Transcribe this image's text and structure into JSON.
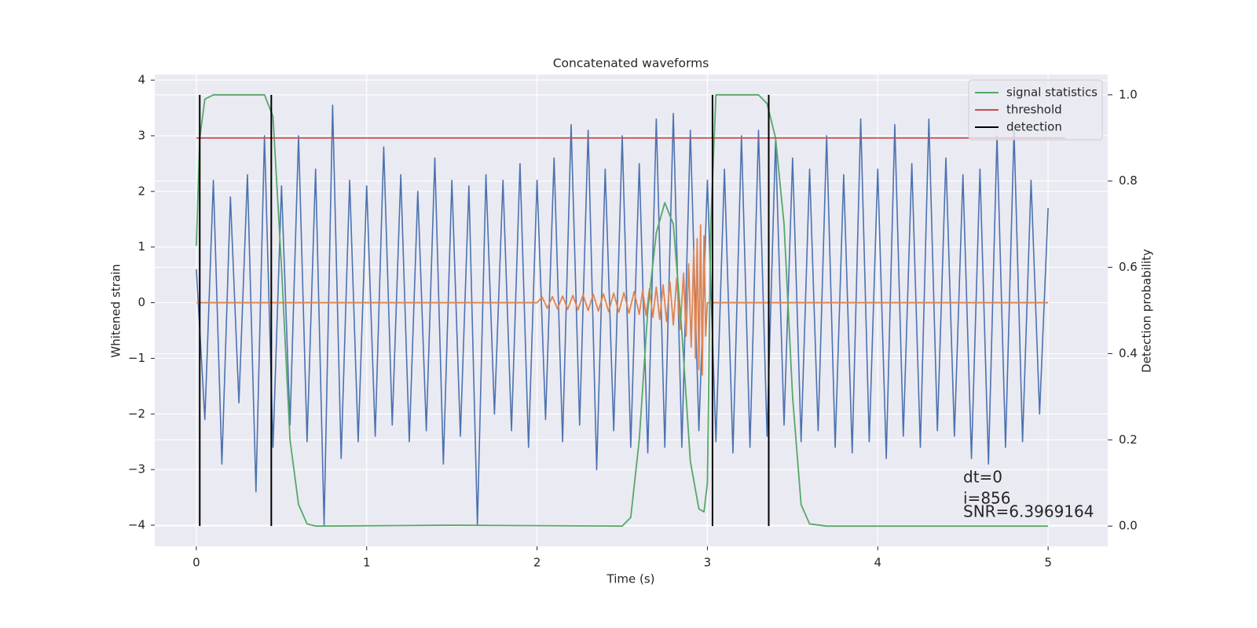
{
  "chart_data": {
    "type": "line",
    "title": "Concatenated waveforms",
    "x_label": "Time (s)",
    "y_label": "Whitened strain",
    "y2_label": "Detection probability",
    "xlim": [
      -0.244,
      5.35
    ],
    "ylim": [
      -4.38,
      4.1
    ],
    "y2lim": [
      -0.047,
      1.047
    ],
    "xticks": [
      0,
      1,
      2,
      3,
      4,
      5
    ],
    "yticks": [
      {
        "value": -4,
        "label": "−4"
      },
      {
        "value": -3,
        "label": "−3"
      },
      {
        "value": -2,
        "label": "−2"
      },
      {
        "value": -1,
        "label": "−1"
      },
      0,
      1,
      2,
      3,
      4
    ],
    "y2ticks": [
      {
        "value": 0,
        "label": "0.0"
      },
      0.2,
      0.4,
      0.6,
      0.8,
      {
        "value": 1,
        "label": "1.0"
      }
    ],
    "grid": true,
    "legend": "upper right",
    "series": [
      {
        "color": "#4c72b0",
        "x": [
          0,
          0.05,
          0.1,
          0.15,
          0.2,
          0.25,
          0.3,
          0.35,
          0.4,
          0.45,
          0.5,
          0.55,
          0.6,
          0.65,
          0.7,
          0.75,
          0.8,
          0.85,
          0.9,
          0.95,
          1,
          1.05,
          1.1,
          1.15,
          1.2,
          1.25,
          1.3,
          1.35,
          1.4,
          1.45,
          1.5,
          1.55,
          1.6,
          1.65,
          1.7,
          1.75,
          1.8,
          1.85,
          1.9,
          1.95,
          2,
          2.05,
          2.1,
          2.15,
          2.2,
          2.25,
          2.3,
          2.35,
          2.4,
          2.45,
          2.5,
          2.55,
          2.6,
          2.65,
          2.7,
          2.75,
          2.8,
          2.85,
          2.9,
          2.95,
          3,
          3.05,
          3.1,
          3.15,
          3.2,
          3.25,
          3.3,
          3.35,
          3.4,
          3.45,
          3.5,
          3.55,
          3.6,
          3.65,
          3.7,
          3.75,
          3.8,
          3.85,
          3.9,
          3.95,
          4,
          4.05,
          4.1,
          4.15,
          4.2,
          4.25,
          4.3,
          4.35,
          4.4,
          4.45,
          4.5,
          4.55,
          4.6,
          4.65,
          4.7,
          4.75,
          4.8,
          4.85,
          4.9,
          4.95,
          5
        ],
        "values": [
          0.6,
          -2.1,
          2.2,
          -2.9,
          1.9,
          -1.8,
          2.3,
          -3.4,
          3.0,
          -2.6,
          2.1,
          -2.2,
          3.0,
          -2.5,
          2.4,
          -4.0,
          3.55,
          -2.8,
          2.2,
          -2.5,
          2.1,
          -2.4,
          2.8,
          -2.2,
          2.3,
          -2.5,
          2.0,
          -2.3,
          2.6,
          -2.9,
          2.2,
          -2.4,
          2.1,
          -4.0,
          2.3,
          -2.0,
          2.2,
          -2.3,
          2.5,
          -2.6,
          2.2,
          -2.1,
          2.6,
          -2.5,
          3.2,
          -2.2,
          3.1,
          -3.0,
          2.4,
          -2.3,
          3.0,
          -2.6,
          2.5,
          -2.7,
          3.3,
          -2.6,
          3.4,
          -2.6,
          3.1,
          -2.3,
          2.2,
          -2.5,
          2.4,
          -2.7,
          3.0,
          -2.6,
          3.1,
          -2.4,
          2.9,
          -2.2,
          2.6,
          -2.5,
          2.4,
          -2.3,
          3.0,
          -2.6,
          2.3,
          -2.7,
          3.3,
          -2.5,
          2.4,
          -2.8,
          3.2,
          -2.4,
          2.5,
          -2.6,
          3.3,
          -2.3,
          2.6,
          -2.4,
          2.3,
          -2.8,
          2.4,
          -2.9,
          3.0,
          -2.6,
          3.1,
          -2.5,
          2.2,
          -2.0,
          1.7
        ]
      },
      {
        "color": "#dd8452",
        "x": [
          0,
          2.0,
          2.03,
          2.06,
          2.09,
          2.12,
          2.15,
          2.18,
          2.21,
          2.24,
          2.27,
          2.3,
          2.33,
          2.36,
          2.39,
          2.42,
          2.45,
          2.48,
          2.51,
          2.54,
          2.57,
          2.6,
          2.62,
          2.64,
          2.66,
          2.68,
          2.7,
          2.72,
          2.74,
          2.76,
          2.78,
          2.8,
          2.82,
          2.84,
          2.86,
          2.875,
          2.89,
          2.905,
          2.92,
          2.93,
          2.94,
          2.95,
          2.96,
          2.97,
          2.98,
          2.99,
          3.0,
          5.0
        ],
        "values": [
          0,
          0,
          0.1,
          -0.1,
          0.11,
          -0.11,
          0.12,
          -0.12,
          0.13,
          -0.13,
          0.14,
          -0.14,
          0.15,
          -0.15,
          0.16,
          -0.16,
          0.17,
          -0.17,
          0.18,
          -0.19,
          0.2,
          -0.21,
          0.22,
          -0.23,
          0.25,
          -0.26,
          0.28,
          -0.3,
          0.32,
          -0.34,
          0.37,
          -0.4,
          0.44,
          -0.48,
          0.53,
          -0.6,
          0.7,
          -0.8,
          0.95,
          -1.0,
          1.15,
          -1.2,
          1.4,
          -1.3,
          1.2,
          -0.6,
          0,
          0
        ]
      },
      {
        "name": "signal statistics",
        "color": "#55a868",
        "axis": "y2",
        "x": [
          0,
          0.02,
          0.05,
          0.1,
          0.4,
          0.45,
          0.5,
          0.55,
          0.6,
          0.65,
          0.7,
          1.5,
          2.5,
          2.55,
          2.6,
          2.65,
          2.7,
          2.75,
          2.8,
          2.85,
          2.9,
          2.95,
          2.98,
          3.0,
          3.02,
          3.05,
          3.3,
          3.35,
          3.4,
          3.45,
          3.5,
          3.55,
          3.6,
          3.7,
          5.0
        ],
        "values": [
          0.65,
          0.9,
          0.99,
          1.0,
          1.0,
          0.95,
          0.6,
          0.2,
          0.05,
          0.005,
          0,
          0.002,
          0,
          0.02,
          0.2,
          0.5,
          0.68,
          0.75,
          0.7,
          0.45,
          0.15,
          0.04,
          0.033,
          0.1,
          0.7,
          1.0,
          1.0,
          0.98,
          0.9,
          0.7,
          0.3,
          0.05,
          0.005,
          0,
          0
        ]
      },
      {
        "name": "threshold",
        "color": "#c44e52",
        "axis": "y2",
        "x": [
          0,
          5.1
        ],
        "values": [
          0.9,
          0.9
        ]
      },
      {
        "name": "detection",
        "color": "#000000",
        "axis": "y2",
        "x": [
          0.02,
          0.44,
          3.03,
          3.36
        ],
        "ymin": 0,
        "ymax": 1
      }
    ],
    "annotations": [
      "dt=0",
      "i=856",
      "SNR=6.3969164"
    ]
  }
}
